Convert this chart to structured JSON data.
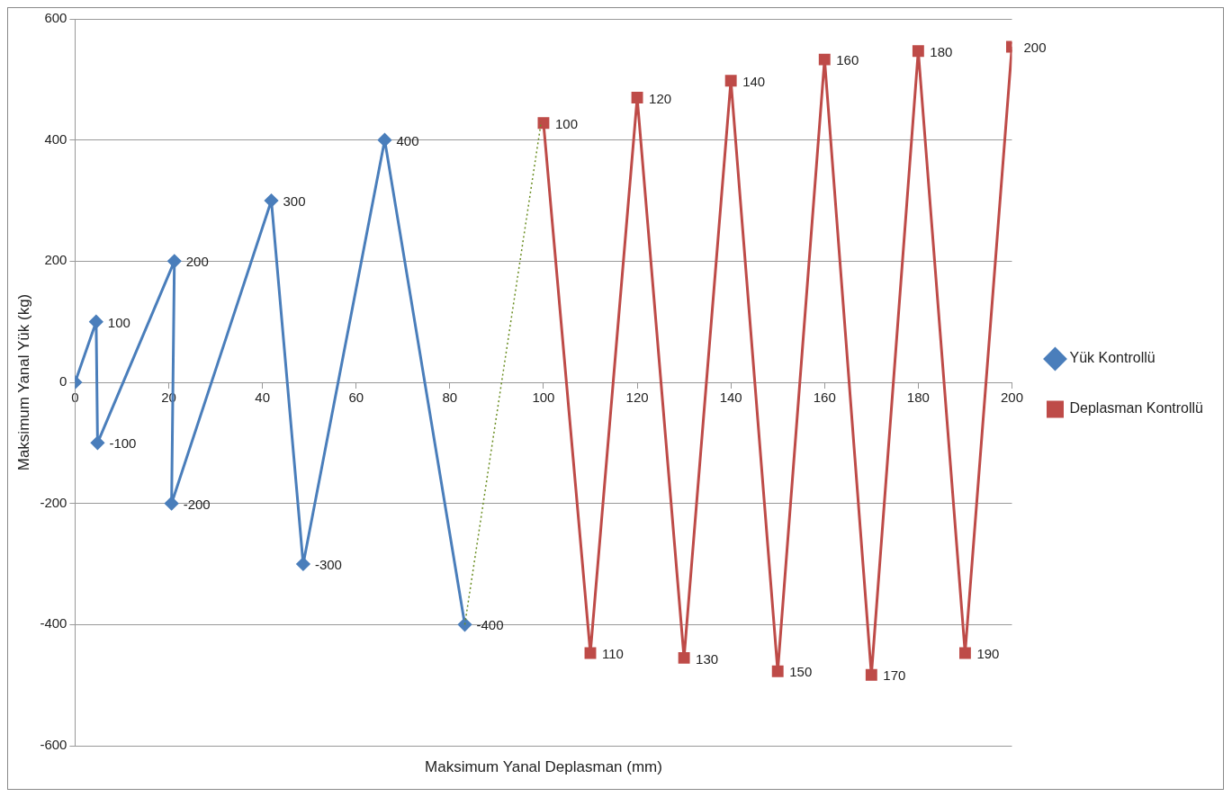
{
  "chart_data": {
    "type": "line",
    "xlabel": "Maksimum Yanal Deplasman (mm)",
    "ylabel": "Maksimum Yanal Yük (kg)",
    "xlim": [
      0,
      200
    ],
    "xticks": [
      0,
      20,
      40,
      60,
      80,
      100,
      120,
      140,
      160,
      180,
      200
    ],
    "ylim": [
      -600,
      600
    ],
    "yticks": [
      -600,
      -400,
      -200,
      0,
      200,
      400,
      600
    ],
    "grid": "y",
    "legend": "right",
    "series": [
      {
        "name": "Yük Kontrollü",
        "color": "#4a7ebb",
        "marker": "diamond",
        "x": [
          0,
          4.5,
          4.8,
          21.2,
          20.6,
          41.9,
          48.7,
          66.1,
          83.2
        ],
        "values": [
          0,
          100,
          -100,
          200,
          -200,
          300,
          -300,
          400,
          -400
        ],
        "value_labels": [
          null,
          "100",
          "-100",
          "200",
          "-200",
          "300",
          "-300",
          "400",
          "-400"
        ]
      },
      {
        "name": "Deplasman Kontrollü",
        "color": "#be4b48",
        "marker": "square",
        "x": [
          100,
          110,
          120,
          130,
          140,
          150,
          160,
          170,
          180,
          190,
          200
        ],
        "values": [
          428,
          -447,
          470,
          -455,
          498,
          -477,
          533,
          -483,
          547,
          -447,
          554
        ]
      },
      {
        "color": "#6b8e23",
        "marker": "none",
        "line_style": "dotted",
        "x": [
          83.2,
          99.5
        ],
        "values": [
          -400,
          430
        ]
      }
    ],
    "annotations": [
      {
        "text": "100",
        "x": 100,
        "y": 428
      },
      {
        "text": "110",
        "x": 110,
        "y": -447
      },
      {
        "text": "120",
        "x": 120,
        "y": 470
      },
      {
        "text": "130",
        "x": 130,
        "y": -455
      },
      {
        "text": "140",
        "x": 140,
        "y": 498
      },
      {
        "text": "150",
        "x": 150,
        "y": -477
      },
      {
        "text": "160",
        "x": 160,
        "y": 533
      },
      {
        "text": "170",
        "x": 170,
        "y": -483
      },
      {
        "text": "180",
        "x": 180,
        "y": 547
      },
      {
        "text": "190",
        "x": 190,
        "y": -447
      },
      {
        "text": "200",
        "x": 200,
        "y": 554
      }
    ]
  }
}
